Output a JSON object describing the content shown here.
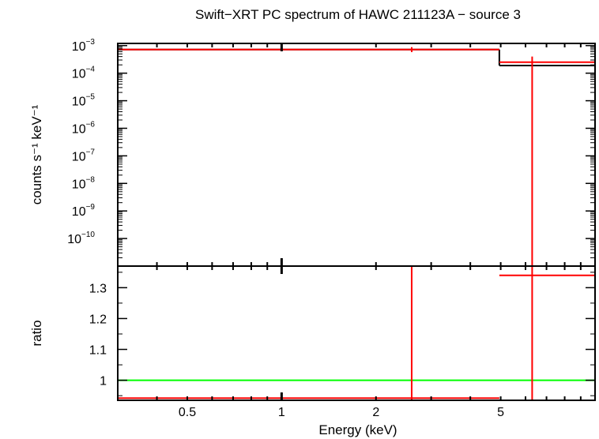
{
  "title": "Swift−XRT PC spectrum of HAWC 211123A − source 3",
  "colors": {
    "data": "#ff0000",
    "model": "#000000",
    "unity": "#00ff00",
    "frame": "#000000"
  },
  "chart_data": [
    {
      "type": "line",
      "panel": "spectrum",
      "title": "Swift−XRT PC spectrum of HAWC 211123A − source 3",
      "xlabel": "Energy (keV)",
      "ylabel": "counts s⁻¹ keV⁻¹",
      "xscale": "log",
      "yscale": "log",
      "xlim": [
        0.3,
        10
      ],
      "ylim": [
        1e-11,
        0.0012
      ],
      "y_ticks": [
        {
          "value": 0.001,
          "base": "10",
          "exp": "−3"
        },
        {
          "value": 0.0001,
          "base": "10",
          "exp": "−4"
        },
        {
          "value": 1e-05,
          "base": "10",
          "exp": "−5"
        },
        {
          "value": 1e-06,
          "base": "10",
          "exp": "−6"
        },
        {
          "value": 1e-07,
          "base": "10",
          "exp": "−7"
        },
        {
          "value": 1e-08,
          "base": "10",
          "exp": "−8"
        },
        {
          "value": 1e-09,
          "base": "10",
          "exp": "−9"
        },
        {
          "value": 1e-10,
          "base": "10",
          "exp": "−10"
        }
      ],
      "series": [
        {
          "role": "data",
          "color": "#ff0000",
          "points": [
            {
              "x": 2.6,
              "xlo": 0.3,
              "xhi": 4.95,
              "y": 0.00072,
              "ylo": 0.00058,
              "yhi": 0.00088
            },
            {
              "x": 6.3,
              "xlo": 4.95,
              "xhi": 10.0,
              "y": 0.00025,
              "ylo": 1e-11,
              "yhi": 0.0004
            }
          ]
        },
        {
          "role": "model",
          "color": "#000000",
          "steps": [
            {
              "xlo": 0.3,
              "xhi": 4.95,
              "y": 0.00072
            },
            {
              "xlo": 4.95,
              "xhi": 10.0,
              "y": 0.00019
            }
          ]
        }
      ]
    },
    {
      "type": "line",
      "panel": "ratio",
      "xlabel": "Energy (keV)",
      "ylabel": "ratio",
      "xscale": "log",
      "xlim": [
        0.3,
        10
      ],
      "ylim": [
        0.935,
        1.37
      ],
      "x_ticks": [
        {
          "value": 0.5,
          "label": "0.5"
        },
        {
          "value": 1,
          "label": "1"
        },
        {
          "value": 2,
          "label": "2"
        },
        {
          "value": 5,
          "label": "5"
        }
      ],
      "y_ticks": [
        {
          "value": 1,
          "label": "1"
        },
        {
          "value": 1.1,
          "label": "1.1"
        },
        {
          "value": 1.2,
          "label": "1.2"
        },
        {
          "value": 1.3,
          "label": "1.3"
        }
      ],
      "unity": 1,
      "series": [
        {
          "role": "data",
          "color": "#ff0000",
          "points": [
            {
              "x": 2.6,
              "xlo": 0.3,
              "xhi": 4.95,
              "y": 0.942,
              "ylo": 0.9,
              "yhi": 1.45
            },
            {
              "x": 6.3,
              "xlo": 4.95,
              "xhi": 10.0,
              "y": 1.34,
              "ylo": 0.9,
              "yhi": 1.45
            }
          ]
        }
      ]
    }
  ]
}
